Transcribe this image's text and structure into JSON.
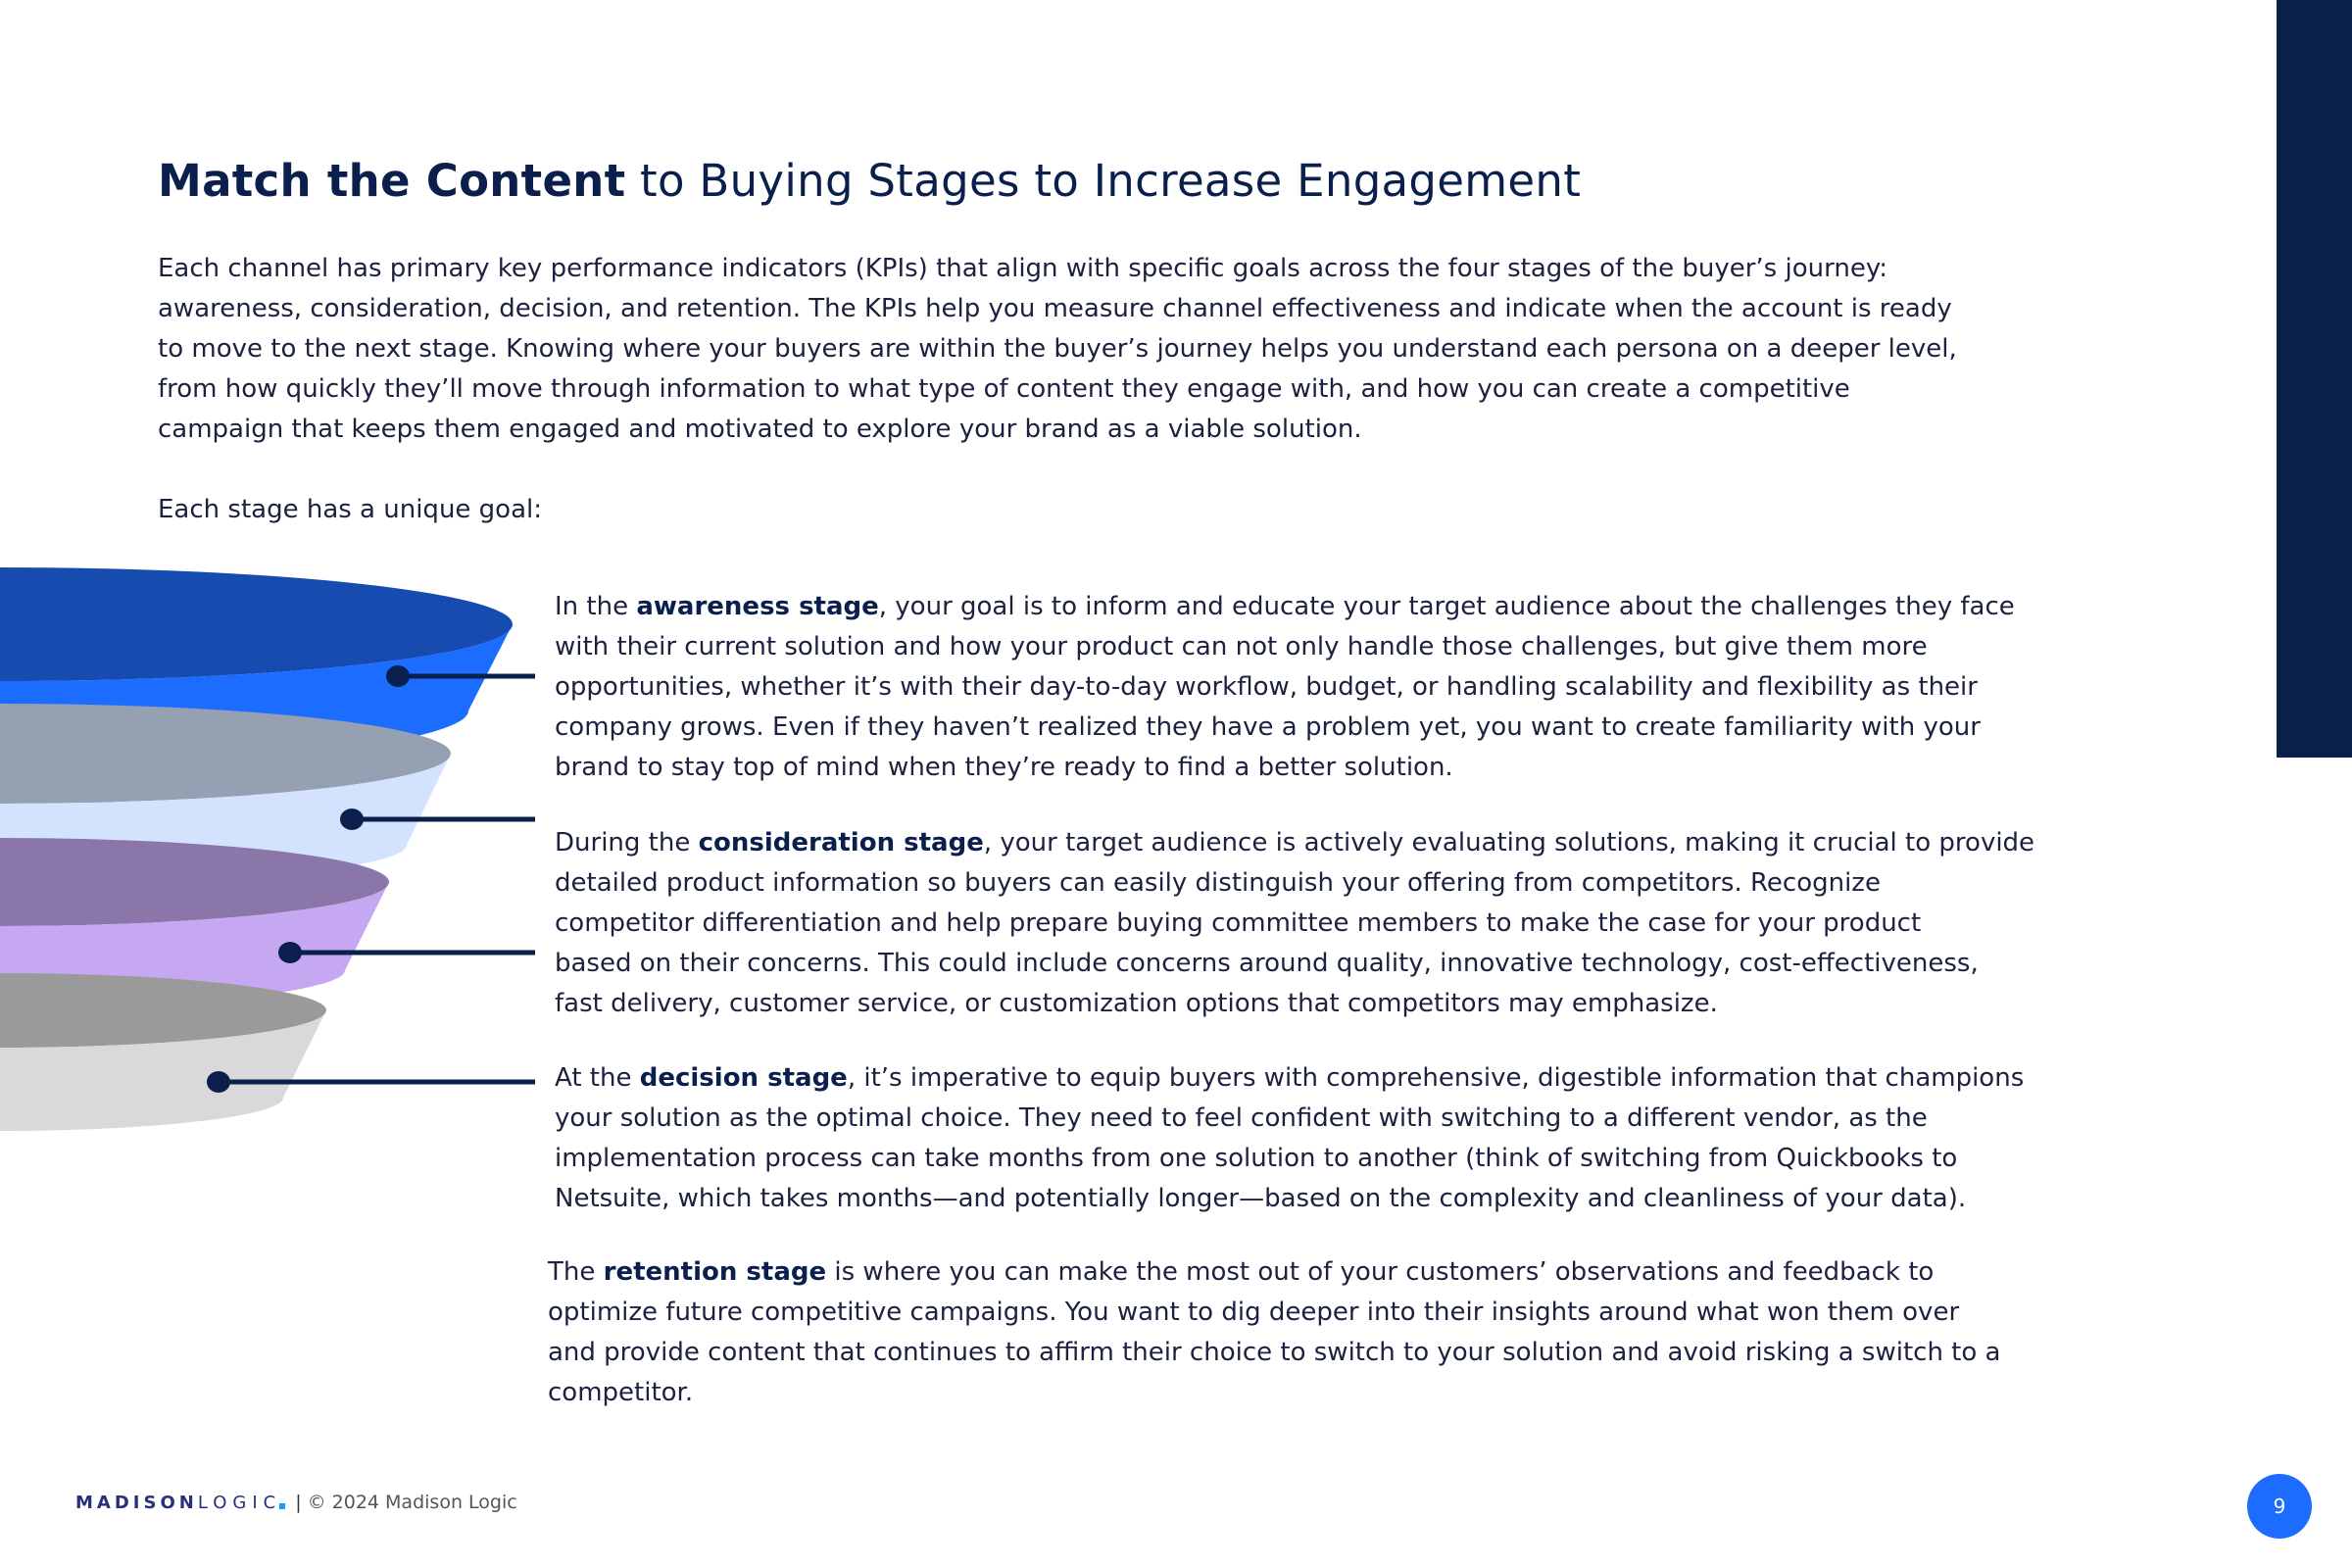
{
  "title": {
    "bold": "Match the Content",
    "rest": " to Buying Stages to Increase Engagement"
  },
  "intro_lines": [
    "Each channel has primary key performance indicators (KPIs) that align with specific goals across the four stages of the buyer’s journey:",
    "awareness, consideration, decision, and retention. The KPIs help you measure channel effectiveness and indicate when the account is ready",
    "to move to the next stage. Knowing where your buyers are within the buyer’s journey helps you understand each persona on a deeper level,",
    "from how quickly they’ll move through information to what type of content they engage with, and how you can create a competitive",
    "campaign that keeps them engaged and motivated to explore your brand as a viable solution."
  ],
  "goal_line": "Each stage has a unique goal:",
  "stages": [
    {
      "pre": "In the ",
      "bold": "awareness stage",
      "post": ", your goal is to inform and educate your target audience about the challenges they face",
      "lines": [
        "with their current solution and how your product can not only handle those challenges, but give them more",
        "opportunities, whether it’s with their day-to-day workflow, budget, or handling scalability and flexibility as their",
        "company grows. Even if they haven’t realized they have a problem yet, you want to create familiarity with your",
        "brand to stay top of mind when they’re ready to find a better solution."
      ]
    },
    {
      "pre": "During the ",
      "bold": "consideration stage",
      "post": ", your target audience is actively evaluating solutions, making it crucial to provide",
      "lines": [
        "detailed product information so buyers can easily distinguish your offering from competitors. Recognize",
        "competitor differentiation and help prepare buying committee members to make the case for your product",
        "based on their concerns. This could include concerns around quality, innovative technology, cost-effectiveness,",
        "fast delivery, customer service, or customization options that competitors may emphasize."
      ]
    },
    {
      "pre": "At the ",
      "bold": "decision stage",
      "post": ", it’s imperative to equip buyers with comprehensive, digestible information that champions",
      "lines": [
        "your solution as the optimal choice. They need to feel confident with switching to a different vendor, as the",
        "implementation process can take months from one solution to another (think of switching from Quickbooks to",
        "Netsuite, which takes months—and potentially longer—based on the complexity and cleanliness of your data)."
      ]
    },
    {
      "pre": "The ",
      "bold": "retention stage",
      "post": " is where you can make the most out of your customers’ observations and feedback to",
      "lines": [
        "optimize future competitive campaigns. You want to dig deeper into their insights around what won them over",
        "and provide content that continues to affirm their choice to switch to your solution and avoid risking a switch to a",
        "competitor."
      ]
    }
  ],
  "funnel_colors": [
    {
      "top": "#164bb0",
      "side": "#1b6cff"
    },
    {
      "top": "#95a0b2",
      "side": "#d3e2fd"
    },
    {
      "top": "#8a76a8",
      "side": "#c5a8f1"
    },
    {
      "top": "#9a9a9a",
      "side": "#d9d9d9"
    }
  ],
  "footer": {
    "logo_bold": "MADISON",
    "logo_light": "LOGIC",
    "separator": "|",
    "copyright": "© 2024 Madison Logic"
  },
  "page_number": "9"
}
